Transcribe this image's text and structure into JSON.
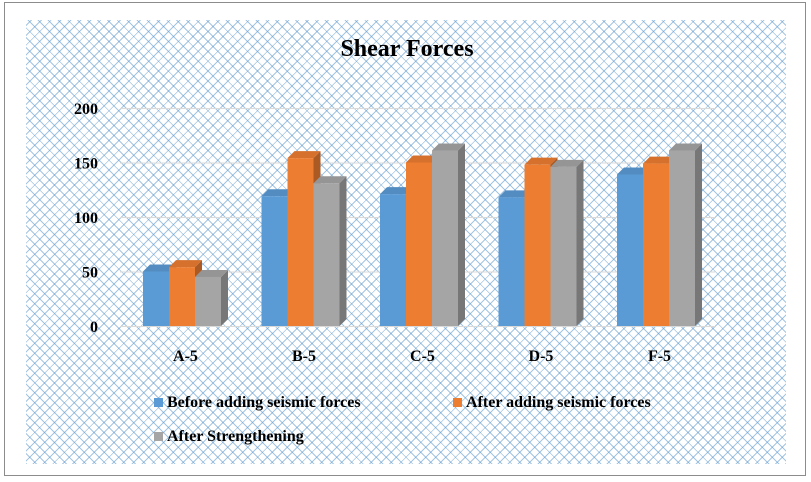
{
  "chart_data": {
    "type": "bar",
    "title": "Shear Forces",
    "categories": [
      "A-5",
      "B-5",
      "C-5",
      "D-5",
      "F-5"
    ],
    "series": [
      {
        "name": "Before adding seismic forces",
        "color": "#5B9BD5",
        "values": [
          50,
          119,
          121,
          118,
          139
        ]
      },
      {
        "name": "After adding seismic forces",
        "color": "#ED7D31",
        "values": [
          54,
          154,
          150,
          148,
          149
        ]
      },
      {
        "name": "After Strengthening",
        "color": "#A5A5A5",
        "values": [
          45,
          131,
          161,
          146,
          161
        ]
      }
    ],
    "yticks": [
      "0",
      "50",
      "100",
      "150",
      "200"
    ],
    "ylim": [
      0,
      200
    ],
    "xlabel": "",
    "ylabel": "",
    "legend_position": "bottom",
    "grid": true,
    "style": "3d-clustered-column"
  }
}
